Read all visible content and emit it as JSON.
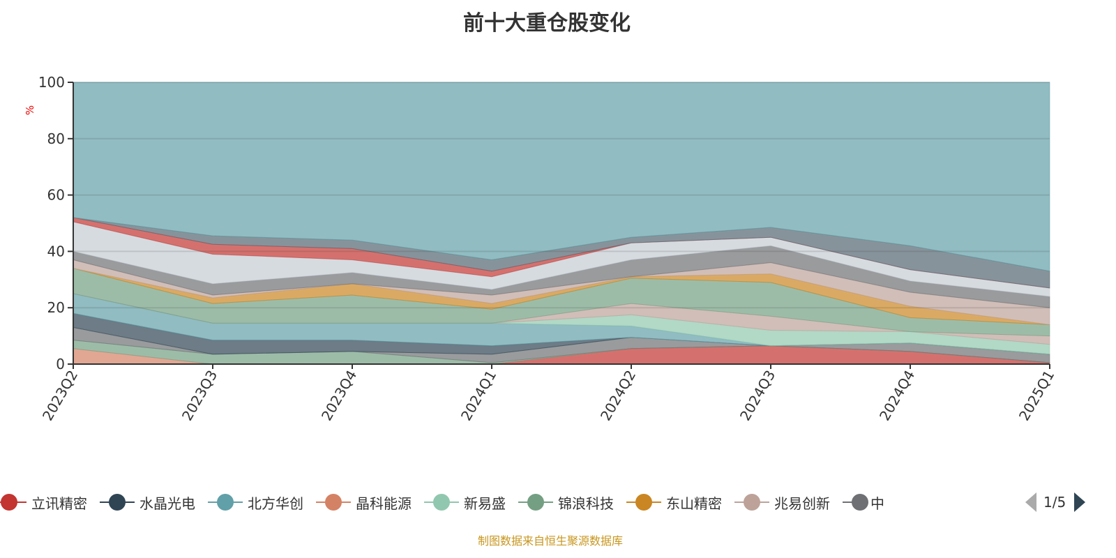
{
  "chart_data": {
    "type": "area",
    "stacked": true,
    "title": "前十大重仓股变化",
    "ylabel": "%",
    "xlabel": "",
    "ylim": [
      0,
      100
    ],
    "yticks": [
      0,
      20,
      40,
      60,
      80,
      100
    ],
    "grid": true,
    "categories": [
      "2023Q2",
      "2023Q3",
      "2023Q4",
      "2024Q1",
      "2024Q2",
      "2024Q3",
      "2024Q4",
      "2025Q1"
    ],
    "series": [
      {
        "name": "立讯精密",
        "color": "#c23531",
        "values": [
          0,
          0,
          0,
          0,
          5.5,
          6.5,
          4.5,
          0.5
        ]
      },
      {
        "name": "晶科能源",
        "color": "#d48265",
        "values": [
          5.5,
          0,
          0,
          0,
          0,
          0,
          0,
          0
        ]
      },
      {
        "name": "锦浪科技",
        "color": "#749f83",
        "values": [
          3,
          3.5,
          4.5,
          0.5,
          0,
          0,
          0,
          0
        ]
      },
      {
        "name": "中",
        "color": "#6e7074",
        "values": [
          4.5,
          0,
          0,
          3,
          4,
          0,
          3,
          3
        ]
      },
      {
        "name": "水晶光电",
        "color": "#2f4554",
        "values": [
          5,
          5,
          4,
          3,
          0,
          0,
          0,
          0
        ]
      },
      {
        "name": "北方华创",
        "color": "#61a0a8",
        "values": [
          7,
          6,
          6,
          8,
          4,
          0,
          0,
          0
        ]
      },
      {
        "name": "新易盛",
        "color": "#91c7ae",
        "values": [
          0,
          0,
          0,
          0,
          4,
          5.5,
          4,
          3.5
        ]
      },
      {
        "name": "兆易创新",
        "color": "#bda29a",
        "values": [
          0,
          0,
          0,
          0,
          4,
          5,
          0,
          3
        ]
      },
      {
        "name": null,
        "color": "#749f83",
        "values": [
          9,
          7,
          10,
          5,
          9,
          12,
          5,
          4
        ]
      },
      {
        "name": "东山精密",
        "color": "#ca8622",
        "values": [
          0,
          2,
          4,
          2,
          0.5,
          3,
          4,
          0
        ]
      },
      {
        "name": null,
        "color": "#bda29a",
        "values": [
          3,
          1,
          0,
          3,
          0,
          4,
          5,
          6
        ]
      },
      {
        "name": null,
        "color": "#6e7074",
        "values": [
          3,
          4,
          4,
          2,
          6,
          6,
          4,
          4
        ]
      },
      {
        "name": null,
        "color": "#c4ccd3",
        "values": [
          10.5,
          10.5,
          4.5,
          4.5,
          6,
          3,
          4,
          3
        ]
      },
      {
        "name": null,
        "color": "#c23531",
        "values": [
          1.5,
          3.5,
          4,
          2,
          0,
          0,
          0,
          0
        ]
      },
      {
        "name": null,
        "color": "#546570",
        "values": [
          0,
          3,
          3,
          4,
          2,
          3.5,
          8.5,
          6
        ]
      },
      {
        "name": null,
        "color": "#61a0a8",
        "values": [
          48,
          54.5,
          56,
          63,
          55,
          51.5,
          58,
          67
        ]
      }
    ],
    "legend": {
      "placement": "bottom",
      "items": [
        {
          "name": "立讯精密",
          "color": "#c23531"
        },
        {
          "name": "水晶光电",
          "color": "#2f4554"
        },
        {
          "name": "北方华创",
          "color": "#61a0a8"
        },
        {
          "name": "晶科能源",
          "color": "#d48265"
        },
        {
          "name": "新易盛",
          "color": "#91c7ae"
        },
        {
          "name": "锦浪科技",
          "color": "#749f83"
        },
        {
          "name": "东山精密",
          "color": "#ca8622"
        },
        {
          "name": "兆易创新",
          "color": "#bda29a"
        },
        {
          "name": "中",
          "color": "#6e7074"
        }
      ],
      "page": "1/5"
    }
  },
  "footer": "制图数据来自恒生聚源数据库"
}
